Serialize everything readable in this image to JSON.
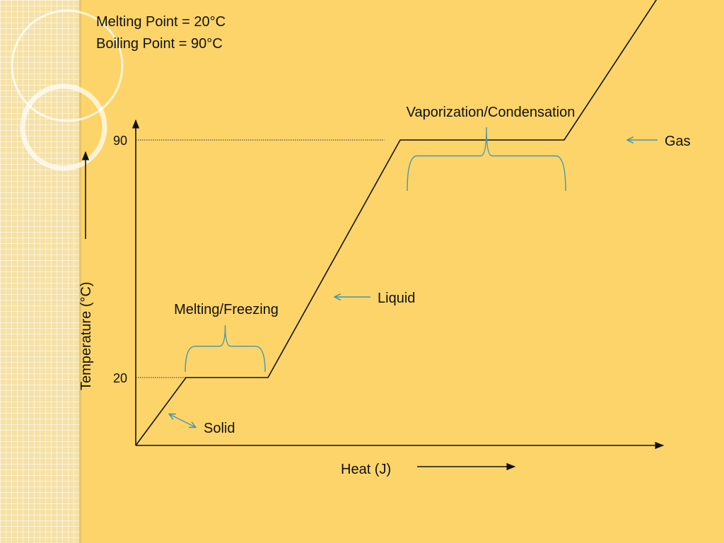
{
  "header": {
    "melting_line": "Melting Point = 20°C",
    "boiling_line": "Boiling Point = 90°C"
  },
  "colors": {
    "background": "#FCD46A",
    "curve": "#111111",
    "annotation_teal": "#4A97A8"
  },
  "chart_data": {
    "type": "line",
    "title": "",
    "xlabel": "Heat (J)",
    "ylabel": "Temperature (°C)",
    "x_ticks_shown": false,
    "y_ticks": [
      20,
      90
    ],
    "grid": false,
    "legend": "none",
    "xlim": [
      0,
      10
    ],
    "ylim": [
      0,
      106
    ],
    "series": [
      {
        "x": [
          0,
          0.95,
          2.5,
          5.0,
          8.1,
          10
        ],
        "y": [
          0,
          20,
          20,
          90,
          90,
          135
        ]
      }
    ],
    "reference_lines": [
      {
        "y": 20,
        "x_end": 0.95
      },
      {
        "y": 90,
        "x_end": 4.7
      }
    ],
    "annotations": [
      {
        "label": "Solid",
        "kind": "arrow",
        "target_x": 0.6,
        "target_y": 11
      },
      {
        "label": "Melting/Freezing",
        "kind": "brace",
        "x_start": 0.95,
        "x_end": 2.5,
        "y": 20
      },
      {
        "label": "Liquid",
        "kind": "arrow",
        "target_x": 3.75,
        "target_y": 55
      },
      {
        "label": "Vaporization/Condensation",
        "kind": "brace",
        "x_start": 5.0,
        "x_end": 8.1,
        "y": 90
      },
      {
        "label": "Gas",
        "kind": "arrow",
        "target_x": 9.3,
        "target_y": 114
      }
    ]
  }
}
